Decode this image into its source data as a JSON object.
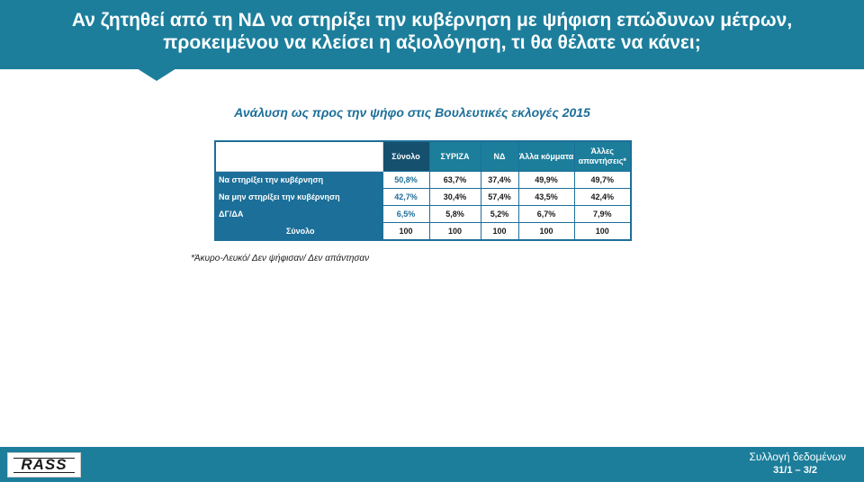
{
  "header": {
    "title_line1": "Αν ζητηθεί από τη ΝΔ να στηρίξει την κυβέρνηση με ψήφιση  επώδυνων μέτρων,",
    "title_line2": "προκειμένου να κλείσει η αξιολόγηση, τι θα θέλατε να κάνει;"
  },
  "subtitle": "Ανάλυση ως προς την ψήφο στις Βουλευτικές εκλογές 2015",
  "table": {
    "columns": [
      "Σύνολο",
      "ΣΥΡΙΖΑ",
      "ΝΔ",
      "Άλλα κόμματα",
      "Άλλες απαντήσεις*"
    ],
    "rows": [
      {
        "label": "Να στηρίξει την κυβέρνηση",
        "values": [
          "50,8%",
          "63,7%",
          "37,4%",
          "49,9%",
          "49,7%"
        ]
      },
      {
        "label": "Να μην στηρίξει την κυβέρνηση",
        "values": [
          "42,7%",
          "30,4%",
          "57,4%",
          "43,5%",
          "42,4%"
        ]
      },
      {
        "label": "ΔΓ/ΔΑ",
        "values": [
          "6,5%",
          "5,8%",
          "5,2%",
          "6,7%",
          "7,9%"
        ]
      },
      {
        "label": "Σύνολο",
        "values": [
          "100",
          "100",
          "100",
          "100",
          "100"
        ]
      }
    ]
  },
  "footnote": "*Άκυρο-Λευκό/ Δεν ψήφισαν/ Δεν απάντησαν",
  "footer": {
    "logo_text": "RASS",
    "data_collection_label": "Συλλογή δεδομένων",
    "dates": "31/1 – 3/2"
  }
}
